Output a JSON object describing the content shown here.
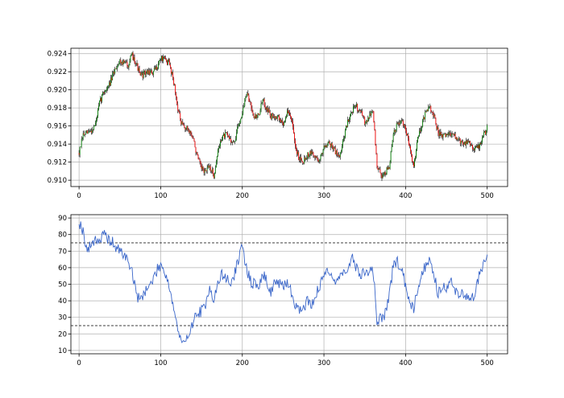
{
  "chart_data": [
    {
      "type": "line",
      "subtype": "candlestick",
      "title": "",
      "xlabel": "",
      "ylabel": "",
      "xlim": [
        -10,
        525
      ],
      "ylim": [
        0.9093,
        0.9246
      ],
      "x_ticks": [
        0,
        100,
        200,
        300,
        400,
        500
      ],
      "y_ticks": [
        0.91,
        0.912,
        0.914,
        0.916,
        0.918,
        0.92,
        0.922,
        0.924
      ],
      "y_tick_labels": [
        "0.910",
        "0.912",
        "0.914",
        "0.916",
        "0.918",
        "0.920",
        "0.922",
        "0.924"
      ],
      "grid": true,
      "colors": {
        "bull": "#008000",
        "bear": "#ff0000",
        "wick": "#000000"
      },
      "close_anchors": [
        [
          0,
          0.913
        ],
        [
          5,
          0.915
        ],
        [
          10,
          0.9152
        ],
        [
          15,
          0.9155
        ],
        [
          20,
          0.9162
        ],
        [
          25,
          0.9185
        ],
        [
          30,
          0.9198
        ],
        [
          35,
          0.9202
        ],
        [
          40,
          0.9212
        ],
        [
          45,
          0.9225
        ],
        [
          50,
          0.9232
        ],
        [
          55,
          0.923
        ],
        [
          60,
          0.9228
        ],
        [
          65,
          0.9238
        ],
        [
          70,
          0.923
        ],
        [
          75,
          0.9215
        ],
        [
          80,
          0.9218
        ],
        [
          85,
          0.922
        ],
        [
          90,
          0.9218
        ],
        [
          95,
          0.9225
        ],
        [
          100,
          0.9235
        ],
        [
          105,
          0.9233
        ],
        [
          110,
          0.923
        ],
        [
          115,
          0.9215
        ],
        [
          120,
          0.9185
        ],
        [
          125,
          0.9162
        ],
        [
          130,
          0.9158
        ],
        [
          135,
          0.9155
        ],
        [
          140,
          0.9145
        ],
        [
          145,
          0.9125
        ],
        [
          150,
          0.9112
        ],
        [
          155,
          0.911
        ],
        [
          160,
          0.9115
        ],
        [
          165,
          0.9105
        ],
        [
          170,
          0.9132
        ],
        [
          175,
          0.9148
        ],
        [
          180,
          0.915
        ],
        [
          185,
          0.9146
        ],
        [
          190,
          0.914
        ],
        [
          195,
          0.916
        ],
        [
          200,
          0.9175
        ],
        [
          205,
          0.9195
        ],
        [
          210,
          0.9185
        ],
        [
          215,
          0.917
        ],
        [
          220,
          0.9172
        ],
        [
          225,
          0.9188
        ],
        [
          230,
          0.918
        ],
        [
          235,
          0.917
        ],
        [
          240,
          0.9172
        ],
        [
          245,
          0.9168
        ],
        [
          250,
          0.9162
        ],
        [
          255,
          0.9175
        ],
        [
          260,
          0.917
        ],
        [
          265,
          0.9135
        ],
        [
          270,
          0.9125
        ],
        [
          275,
          0.9122
        ],
        [
          280,
          0.9128
        ],
        [
          285,
          0.913
        ],
        [
          290,
          0.9125
        ],
        [
          295,
          0.9122
        ],
        [
          300,
          0.9138
        ],
        [
          305,
          0.9142
        ],
        [
          310,
          0.9138
        ],
        [
          315,
          0.913
        ],
        [
          320,
          0.9128
        ],
        [
          325,
          0.915
        ],
        [
          330,
          0.9168
        ],
        [
          335,
          0.9178
        ],
        [
          340,
          0.9182
        ],
        [
          345,
          0.9175
        ],
        [
          350,
          0.9165
        ],
        [
          355,
          0.917
        ],
        [
          360,
          0.9178
        ],
        [
          365,
          0.9115
        ],
        [
          370,
          0.9105
        ],
        [
          375,
          0.9108
        ],
        [
          380,
          0.9115
        ],
        [
          385,
          0.915
        ],
        [
          390,
          0.9162
        ],
        [
          395,
          0.9165
        ],
        [
          400,
          0.9155
        ],
        [
          405,
          0.9138
        ],
        [
          410,
          0.9115
        ],
        [
          415,
          0.9148
        ],
        [
          420,
          0.9162
        ],
        [
          425,
          0.9175
        ],
        [
          430,
          0.918
        ],
        [
          435,
          0.917
        ],
        [
          440,
          0.9152
        ],
        [
          445,
          0.9148
        ],
        [
          450,
          0.915
        ],
        [
          455,
          0.9152
        ],
        [
          460,
          0.9148
        ],
        [
          465,
          0.9145
        ],
        [
          470,
          0.914
        ],
        [
          475,
          0.9142
        ],
        [
          480,
          0.914
        ],
        [
          485,
          0.9135
        ],
        [
          490,
          0.9138
        ],
        [
          495,
          0.9148
        ],
        [
          500,
          0.9158
        ]
      ]
    },
    {
      "type": "line",
      "title": "",
      "xlabel": "",
      "ylabel": "",
      "xlim": [
        -10,
        525
      ],
      "ylim": [
        8,
        92
      ],
      "x_ticks": [
        0,
        100,
        200,
        300,
        400,
        500
      ],
      "y_ticks": [
        10,
        20,
        30,
        40,
        50,
        60,
        70,
        80,
        90
      ],
      "grid": true,
      "line_color": "#3a66c9",
      "reference_lines": [
        75,
        25
      ],
      "reference_style": "dashed",
      "anchors": [
        [
          0,
          88
        ],
        [
          5,
          82
        ],
        [
          10,
          70
        ],
        [
          15,
          74
        ],
        [
          20,
          78
        ],
        [
          25,
          76
        ],
        [
          30,
          80
        ],
        [
          35,
          77
        ],
        [
          40,
          76
        ],
        [
          45,
          72
        ],
        [
          50,
          70
        ],
        [
          55,
          68
        ],
        [
          60,
          64
        ],
        [
          65,
          58
        ],
        [
          70,
          44
        ],
        [
          75,
          40
        ],
        [
          80,
          46
        ],
        [
          85,
          48
        ],
        [
          90,
          52
        ],
        [
          95,
          58
        ],
        [
          100,
          62
        ],
        [
          105,
          58
        ],
        [
          110,
          50
        ],
        [
          115,
          38
        ],
        [
          120,
          25
        ],
        [
          125,
          15
        ],
        [
          130,
          13
        ],
        [
          135,
          22
        ],
        [
          140,
          28
        ],
        [
          145,
          32
        ],
        [
          150,
          34
        ],
        [
          155,
          36
        ],
        [
          160,
          50
        ],
        [
          165,
          40
        ],
        [
          170,
          50
        ],
        [
          175,
          56
        ],
        [
          180,
          54
        ],
        [
          185,
          50
        ],
        [
          190,
          55
        ],
        [
          195,
          65
        ],
        [
          200,
          72
        ],
        [
          205,
          60
        ],
        [
          210,
          52
        ],
        [
          215,
          50
        ],
        [
          220,
          48
        ],
        [
          225,
          56
        ],
        [
          230,
          52
        ],
        [
          235,
          45
        ],
        [
          240,
          52
        ],
        [
          245,
          50
        ],
        [
          250,
          48
        ],
        [
          255,
          52
        ],
        [
          260,
          45
        ],
        [
          265,
          38
        ],
        [
          270,
          34
        ],
        [
          275,
          36
        ],
        [
          280,
          40
        ],
        [
          285,
          38
        ],
        [
          290,
          44
        ],
        [
          295,
          48
        ],
        [
          300,
          56
        ],
        [
          305,
          60
        ],
        [
          310,
          55
        ],
        [
          315,
          50
        ],
        [
          320,
          55
        ],
        [
          325,
          60
        ],
        [
          330,
          58
        ],
        [
          335,
          66
        ],
        [
          340,
          60
        ],
        [
          345,
          55
        ],
        [
          350,
          58
        ],
        [
          355,
          56
        ],
        [
          360,
          60
        ],
        [
          365,
          28
        ],
        [
          370,
          30
        ],
        [
          375,
          32
        ],
        [
          380,
          42
        ],
        [
          385,
          62
        ],
        [
          390,
          64
        ],
        [
          395,
          58
        ],
        [
          400,
          50
        ],
        [
          405,
          40
        ],
        [
          410,
          36
        ],
        [
          415,
          48
        ],
        [
          420,
          56
        ],
        [
          425,
          62
        ],
        [
          430,
          66
        ],
        [
          435,
          55
        ],
        [
          440,
          44
        ],
        [
          445,
          50
        ],
        [
          450,
          48
        ],
        [
          455,
          52
        ],
        [
          460,
          46
        ],
        [
          465,
          45
        ],
        [
          470,
          44
        ],
        [
          475,
          42
        ],
        [
          480,
          40
        ],
        [
          485,
          45
        ],
        [
          490,
          55
        ],
        [
          495,
          62
        ],
        [
          500,
          67
        ]
      ]
    }
  ]
}
